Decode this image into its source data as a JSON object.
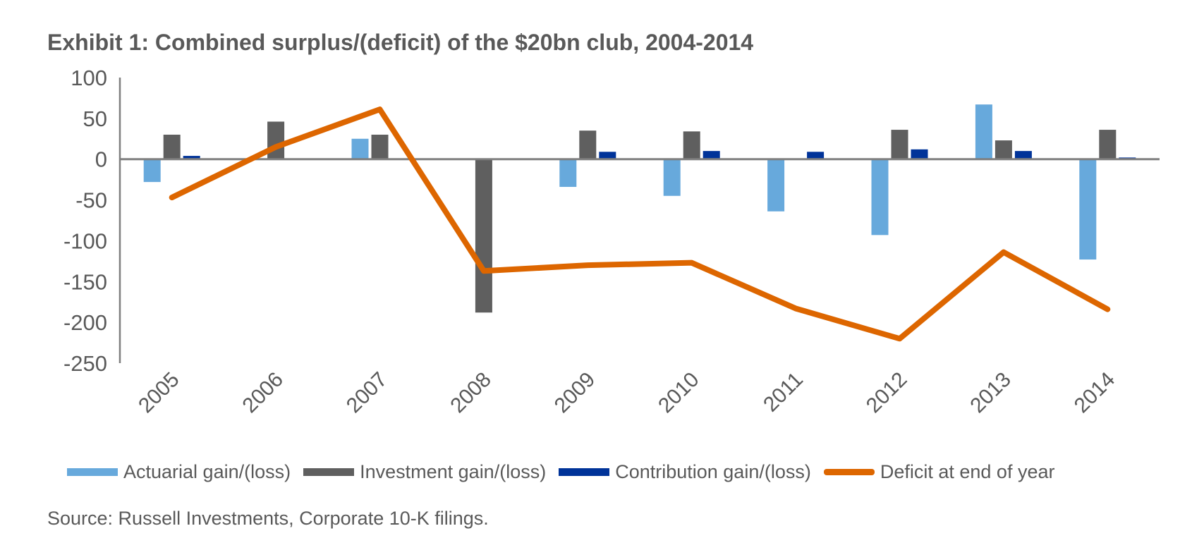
{
  "chart_data": {
    "type": "bar",
    "title": "Exhibit 1: Combined surplus/(deficit) of the $20bn club, 2004-2014",
    "xlabel": "",
    "ylabel": "",
    "ylim": [
      -250,
      100
    ],
    "yticks": [
      100,
      50,
      0,
      -50,
      -100,
      -150,
      -200,
      -250
    ],
    "categories": [
      "2005",
      "2006",
      "2007",
      "2008",
      "2009",
      "2010",
      "2011",
      "2012",
      "2013",
      "2014"
    ],
    "series": [
      {
        "name": "Actuarial gain/(loss)",
        "type": "bar",
        "color": "#67a9dc",
        "values": [
          -28,
          1,
          25,
          0,
          -34,
          -45,
          -64,
          -93,
          67,
          -123
        ]
      },
      {
        "name": "Investment gain/(loss)",
        "type": "bar",
        "color": "#5f5f5f",
        "values": [
          30,
          46,
          30,
          -188,
          35,
          34,
          0,
          36,
          23,
          36
        ]
      },
      {
        "name": "Contribution gain/(loss)",
        "type": "bar",
        "color": "#003399",
        "values": [
          4,
          1,
          0,
          0,
          9,
          10,
          9,
          12,
          10,
          2
        ]
      },
      {
        "name": "Deficit at end of year",
        "type": "line",
        "color": "#dd6600",
        "values": [
          -47,
          15,
          61,
          -137,
          -130,
          -127,
          -183,
          -220,
          -114,
          -184
        ]
      }
    ],
    "grid": false,
    "legend_position": "bottom",
    "source": "Source:  Russell Investments, Corporate 10-K filings."
  }
}
